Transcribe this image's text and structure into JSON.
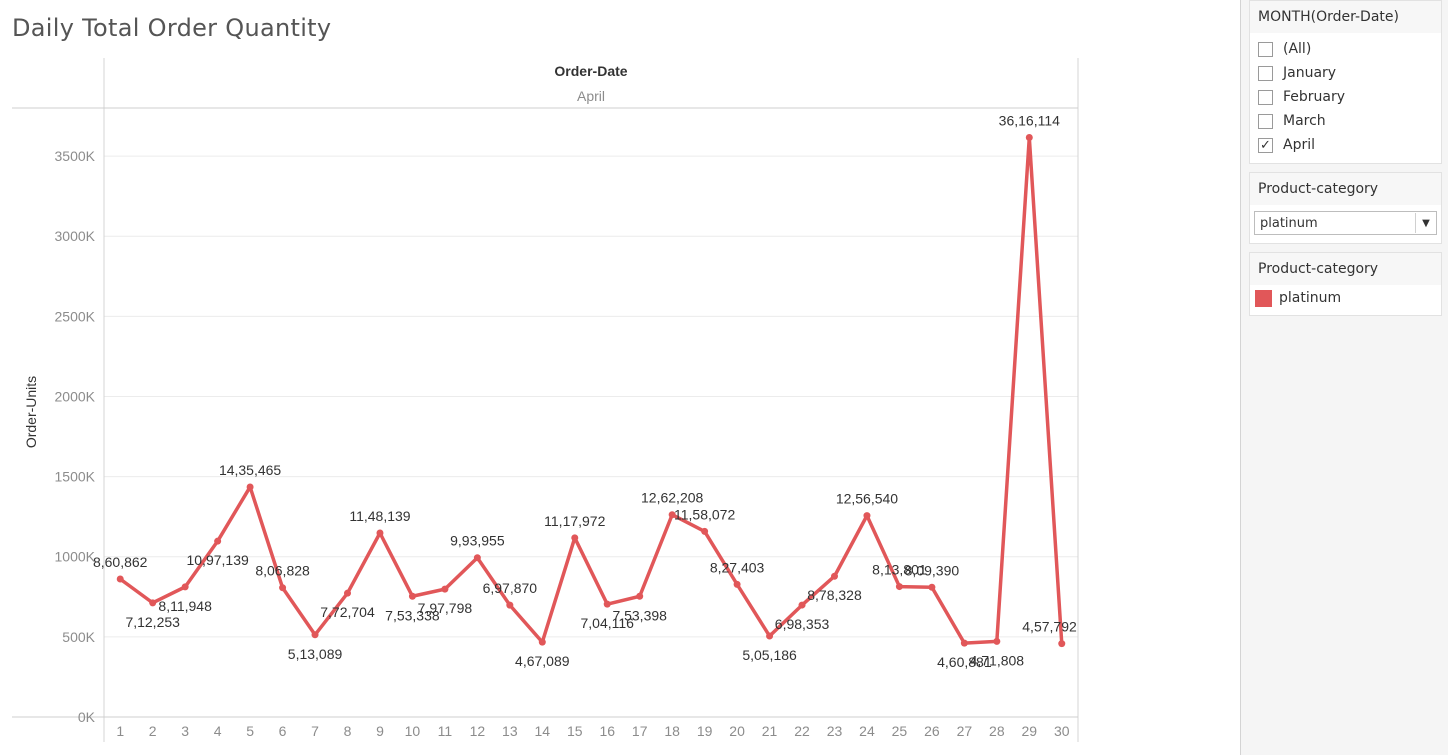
{
  "title": "Daily Total Order Quantity",
  "colors": {
    "line": "#e15759",
    "grid": "#ececec",
    "axis_text": "#8c8c8c",
    "label_text": "#333333"
  },
  "chart_data": {
    "type": "line",
    "title": "Daily Total Order Quantity",
    "column_header": "Order-Date",
    "column_subheader": "April",
    "ylabel": "Order-Units",
    "xlabel": "",
    "ylim": [
      0,
      3800000
    ],
    "grid": true,
    "yticks": [
      0,
      500000,
      1000000,
      1500000,
      2000000,
      2500000,
      3000000,
      3500000
    ],
    "ytick_labels": [
      "0K",
      "500K",
      "1000K",
      "1500K",
      "2000K",
      "2500K",
      "3000K",
      "3500K"
    ],
    "x": [
      "1",
      "2",
      "3",
      "4",
      "5",
      "6",
      "7",
      "8",
      "9",
      "10",
      "11",
      "12",
      "13",
      "14",
      "15",
      "16",
      "17",
      "18",
      "19",
      "20",
      "21",
      "22",
      "23",
      "24",
      "25",
      "26",
      "27",
      "28",
      "29",
      "30"
    ],
    "series": [
      {
        "name": "platinum",
        "values": [
          860862,
          712253,
          811948,
          1097139,
          1435465,
          806828,
          513089,
          772704,
          1148139,
          753338,
          797798,
          993955,
          697870,
          467089,
          1117972,
          704116,
          753398,
          1262208,
          1158072,
          827403,
          505186,
          698353,
          878328,
          1256540,
          813801,
          809390,
          460881,
          471808,
          3616114,
          457792
        ],
        "labels": [
          "8,60,862",
          "7,12,253",
          "8,11,948",
          "10,97,139",
          "14,35,465",
          "8,06,828",
          "5,13,089",
          "7,72,704",
          "11,48,139",
          "7,53,338",
          "7,97,798",
          "9,93,955",
          "6,97,870",
          "4,67,089",
          "11,17,972",
          "7,04,116",
          "7,53,398",
          "12,62,208",
          "11,58,072",
          "8,27,403",
          "5,05,186",
          "6,98,353",
          "8,78,328",
          "12,56,540",
          "8,13,801",
          "8,09,390",
          "4,60,881",
          "4,71,808",
          "36,16,114",
          "4,57,792"
        ]
      }
    ]
  },
  "filters": {
    "month": {
      "title": "MONTH(Order-Date)",
      "items": [
        {
          "label": "(All)",
          "checked": false
        },
        {
          "label": "January",
          "checked": false
        },
        {
          "label": "February",
          "checked": false
        },
        {
          "label": "March",
          "checked": false
        },
        {
          "label": "April",
          "checked": true
        }
      ]
    },
    "category": {
      "title": "Product-category",
      "selected": "platinum"
    }
  },
  "legend": {
    "title": "Product-category",
    "items": [
      {
        "label": "platinum",
        "color": "#e15759"
      }
    ]
  }
}
